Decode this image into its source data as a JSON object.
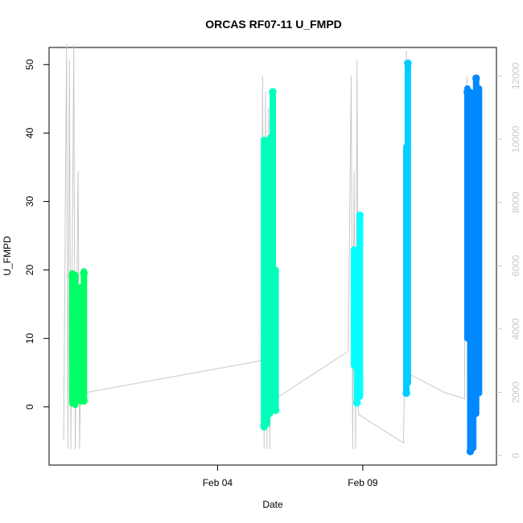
{
  "chart_data": {
    "type": "scatter",
    "title": "ORCAS RF07-11 U_FMPD",
    "xlabel": "Date",
    "ylabel": "U_FMPD",
    "x_ticks": [
      "Feb 04",
      "Feb 09"
    ],
    "x_tick_values": [
      4,
      9
    ],
    "xlim": [
      -1.8,
      13.6
    ],
    "ylim": [
      -8.5,
      52.5
    ],
    "y_ticks": [
      0,
      10,
      20,
      30,
      40,
      50
    ],
    "y2_ticks": [
      0,
      2000,
      4000,
      6000,
      8000,
      10000,
      12000
    ],
    "y2lim": [
      -300,
      12900
    ],
    "grid": false,
    "altitude_color": "#c8c8c8",
    "series": [
      {
        "color": "#00ff66",
        "segments": [
          {
            "x": -1.0,
            "ymin": 0.5,
            "ymax": 19.5
          },
          {
            "x": -0.9,
            "ymin": 0.3,
            "ymax": 19.3
          },
          {
            "x": -0.8,
            "ymin": 3.0,
            "ymax": 11.0
          },
          {
            "x": -0.7,
            "ymin": 0.8,
            "ymax": 17.5
          },
          {
            "x": -0.6,
            "ymin": 0.8,
            "ymax": 19.8
          }
        ],
        "points": [
          {
            "x": -1.0,
            "y": 19.0
          },
          {
            "x": -0.95,
            "y": 0.8
          },
          {
            "x": -0.6,
            "y": 19.5
          },
          {
            "x": -0.6,
            "y": 0.9
          }
        ]
      },
      {
        "color": "#00ffbb",
        "segments": [
          {
            "x": 5.6,
            "ymin": -3.0,
            "ymax": 39.0
          },
          {
            "x": 5.7,
            "ymin": -2.5,
            "ymax": 35.0
          },
          {
            "x": 5.8,
            "ymin": -1.0,
            "ymax": 39.3
          },
          {
            "x": 5.9,
            "ymin": -0.5,
            "ymax": 46.0
          },
          {
            "x": 6.0,
            "ymin": -0.5,
            "ymax": 20.0
          }
        ],
        "points": [
          {
            "x": 5.6,
            "y": -2.8
          },
          {
            "x": 5.9,
            "y": 46.0
          },
          {
            "x": 6.0,
            "y": -0.5
          }
        ]
      },
      {
        "color": "#00ffff",
        "segments": [
          {
            "x": 8.7,
            "ymin": 6.0,
            "ymax": 23.0
          },
          {
            "x": 8.8,
            "ymin": 0.5,
            "ymax": 22.5
          },
          {
            "x": 8.9,
            "ymin": 1.5,
            "ymax": 28.0
          }
        ],
        "points": [
          {
            "x": 8.8,
            "y": 0.6
          },
          {
            "x": 8.9,
            "y": 28.0
          }
        ]
      },
      {
        "color": "#00ccff",
        "segments": [
          {
            "x": 10.5,
            "ymin": 2.0,
            "ymax": 38.0
          },
          {
            "x": 10.55,
            "ymin": 3.5,
            "ymax": 50.2
          }
        ],
        "points": [
          {
            "x": 10.55,
            "y": 50.2
          },
          {
            "x": 10.5,
            "y": 2.0
          }
        ]
      },
      {
        "color": "#0088ff",
        "segments": [
          {
            "x": 12.6,
            "ymin": 10.0,
            "ymax": 46.5
          },
          {
            "x": 12.7,
            "ymin": -6.5,
            "ymax": 46.0
          },
          {
            "x": 12.8,
            "ymin": -6.0,
            "ymax": 32.0
          },
          {
            "x": 12.9,
            "ymin": -1.0,
            "ymax": 48.0
          },
          {
            "x": 13.0,
            "ymin": 2.0,
            "ymax": 46.5
          }
        ],
        "points": [
          {
            "x": 12.7,
            "y": -6.5
          },
          {
            "x": 12.9,
            "y": 48.0
          },
          {
            "x": 12.6,
            "y": 46.0
          }
        ]
      }
    ],
    "altitude_line": [
      [
        -1.3,
        500
      ],
      [
        -1.2,
        13000
      ],
      [
        -1.15,
        200
      ],
      [
        -1.1,
        12500
      ],
      [
        -1.05,
        200
      ],
      [
        -0.95,
        13000
      ],
      [
        -0.9,
        200
      ],
      [
        -0.8,
        9000
      ],
      [
        -0.75,
        200
      ],
      [
        -0.7,
        3500
      ],
      [
        -0.5,
        2000
      ],
      [
        5.5,
        3000
      ],
      [
        5.55,
        12000
      ],
      [
        5.6,
        200
      ],
      [
        5.65,
        11500
      ],
      [
        5.7,
        200
      ],
      [
        5.75,
        11000
      ],
      [
        5.8,
        200
      ],
      [
        5.85,
        5000
      ],
      [
        5.9,
        2800
      ],
      [
        6.0,
        1800
      ],
      [
        8.5,
        3300
      ],
      [
        8.6,
        12000
      ],
      [
        8.65,
        200
      ],
      [
        8.7,
        9000
      ],
      [
        8.75,
        200
      ],
      [
        8.8,
        12500
      ],
      [
        8.85,
        1300
      ],
      [
        10.4,
        400
      ],
      [
        10.45,
        3500
      ],
      [
        10.5,
        12800
      ],
      [
        10.55,
        2600
      ],
      [
        11.8,
        2000
      ],
      [
        12.5,
        1800
      ],
      [
        12.55,
        11500
      ],
      [
        12.6,
        12000
      ]
    ]
  }
}
